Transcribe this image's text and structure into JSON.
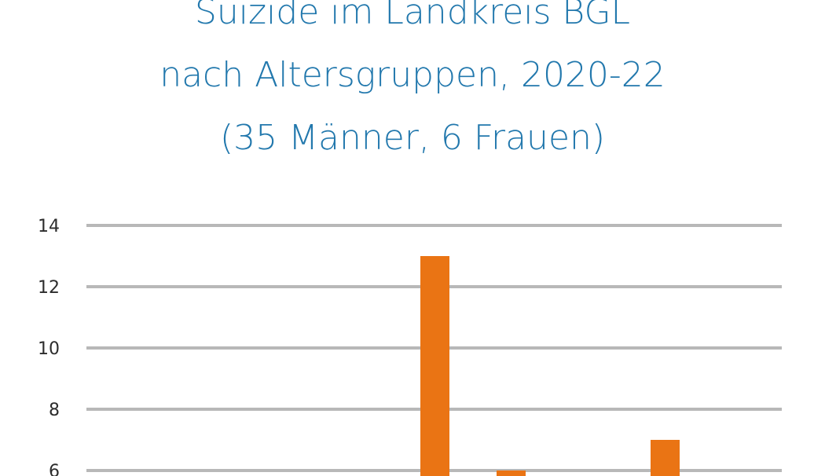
{
  "title_lines": [
    "Suizide im Landkreis BGL",
    "nach Altersgruppen, 2020-22",
    "(35 Männer, 6 Frauen)"
  ],
  "colors": {
    "title": "#2278ad",
    "bar": "#ea7414",
    "grid": "#b8b8b8",
    "tick_text": "#2c2c2c"
  },
  "chart_data": {
    "type": "bar",
    "title": "Suizide im Landkreis BGL nach Altersgruppen, 2020-22 (35 Männer, 6 Frauen)",
    "yticks": [
      6,
      8,
      10,
      12,
      14
    ],
    "ylim_visible": [
      5.8,
      14
    ],
    "values": [
      13,
      6,
      7
    ],
    "grid": true
  }
}
